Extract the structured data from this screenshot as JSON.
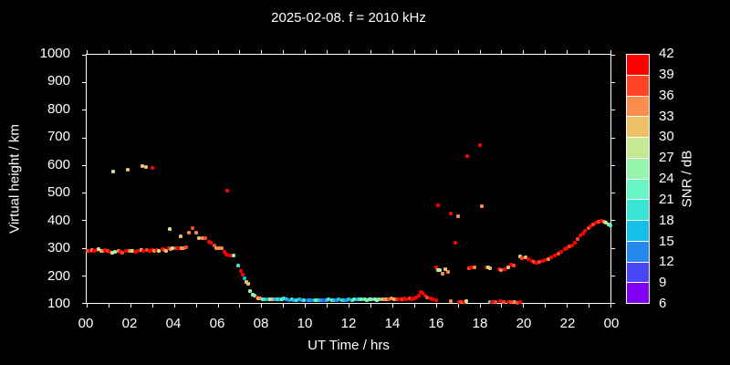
{
  "title": "2025-02-08. f = 2010 kHz",
  "chart_data": {
    "type": "scatter",
    "title": "2025-02-08. f = 2010 kHz",
    "xlabel": "UT Time / hrs",
    "ylabel": "Virtual height / km",
    "xlim": [
      0,
      24
    ],
    "ylim": [
      100,
      1000
    ],
    "x_tick_step": 1,
    "x_tick_labels": [
      [
        0,
        "00"
      ],
      [
        2,
        "02"
      ],
      [
        4,
        "04"
      ],
      [
        6,
        "06"
      ],
      [
        8,
        "08"
      ],
      [
        10,
        "10"
      ],
      [
        12,
        "12"
      ],
      [
        14,
        "14"
      ],
      [
        16,
        "16"
      ],
      [
        18,
        "18"
      ],
      [
        20,
        "20"
      ],
      [
        22,
        "22"
      ],
      [
        24,
        "00"
      ]
    ],
    "y_ticks": [
      100,
      200,
      300,
      400,
      500,
      600,
      700,
      800,
      900,
      1000
    ],
    "grid": false,
    "point_fields": [
      "ut_hours",
      "virtual_height_km",
      "snr_db"
    ],
    "points": [
      [
        0.05,
        290,
        37
      ],
      [
        0.15,
        288,
        40
      ],
      [
        0.25,
        293,
        34
      ],
      [
        0.35,
        290,
        40
      ],
      [
        0.45,
        292,
        40
      ],
      [
        0.55,
        295,
        28
      ],
      [
        0.65,
        290,
        31
      ],
      [
        0.75,
        288,
        34
      ],
      [
        0.85,
        292,
        40
      ],
      [
        0.95,
        290,
        37
      ],
      [
        1.05,
        285,
        40
      ],
      [
        1.15,
        282,
        28
      ],
      [
        1.3,
        285,
        25
      ],
      [
        1.45,
        288,
        34
      ],
      [
        1.55,
        285,
        40
      ],
      [
        1.65,
        283,
        37
      ],
      [
        1.8,
        287,
        40
      ],
      [
        1.95,
        290,
        34
      ],
      [
        2.1,
        288,
        28
      ],
      [
        2.2,
        285,
        40
      ],
      [
        2.35,
        290,
        40
      ],
      [
        2.5,
        292,
        31
      ],
      [
        2.6,
        290,
        40
      ],
      [
        2.75,
        293,
        37
      ],
      [
        2.9,
        290,
        40
      ],
      [
        3.0,
        292,
        40
      ],
      [
        3.1,
        290,
        34
      ],
      [
        3.2,
        293,
        40
      ],
      [
        3.3,
        290,
        28
      ],
      [
        3.45,
        295,
        40
      ],
      [
        3.55,
        292,
        37
      ],
      [
        3.65,
        290,
        31
      ],
      [
        3.75,
        297,
        40
      ],
      [
        3.85,
        295,
        34
      ],
      [
        3.95,
        298,
        28
      ],
      [
        4.1,
        300,
        37
      ],
      [
        4.2,
        298,
        40
      ],
      [
        4.35,
        300,
        31
      ],
      [
        4.45,
        298,
        34
      ],
      [
        4.55,
        303,
        37
      ],
      [
        1.2,
        575,
        28
      ],
      [
        1.9,
        583,
        31
      ],
      [
        2.55,
        595,
        31
      ],
      [
        2.7,
        592,
        31
      ],
      [
        3.0,
        590,
        40
      ],
      [
        3.8,
        367,
        28
      ],
      [
        4.3,
        340,
        31
      ],
      [
        4.7,
        355,
        34
      ],
      [
        4.85,
        372,
        37
      ],
      [
        5.0,
        356,
        34
      ],
      [
        5.15,
        335,
        31
      ],
      [
        5.3,
        334,
        34
      ],
      [
        5.45,
        334,
        37
      ],
      [
        5.6,
        323,
        40
      ],
      [
        5.7,
        318,
        40
      ],
      [
        5.85,
        309,
        37
      ],
      [
        5.95,
        298,
        34
      ],
      [
        6.05,
        298,
        34
      ],
      [
        6.2,
        297,
        34
      ],
      [
        6.3,
        285,
        40
      ],
      [
        6.4,
        277,
        40
      ],
      [
        6.55,
        271,
        40
      ],
      [
        6.75,
        272,
        25
      ],
      [
        6.95,
        235,
        19
      ],
      [
        7.05,
        215,
        40
      ],
      [
        7.15,
        203,
        40
      ],
      [
        7.25,
        188,
        16
      ],
      [
        7.3,
        176,
        31
      ],
      [
        7.4,
        170,
        31
      ],
      [
        7.5,
        142,
        25
      ],
      [
        7.6,
        130,
        28
      ],
      [
        6.45,
        507,
        40
      ],
      [
        7.7,
        126,
        22
      ],
      [
        7.8,
        120,
        40
      ],
      [
        7.88,
        117,
        31
      ],
      [
        7.95,
        115,
        34
      ],
      [
        8.05,
        114,
        22
      ],
      [
        8.15,
        112,
        19
      ],
      [
        8.3,
        113,
        16
      ],
      [
        8.4,
        112,
        25
      ],
      [
        8.5,
        114,
        31
      ],
      [
        8.6,
        112,
        16
      ],
      [
        8.75,
        113,
        19
      ],
      [
        8.85,
        112,
        16
      ],
      [
        8.95,
        114,
        22
      ],
      [
        9.05,
        115,
        19
      ],
      [
        9.15,
        112,
        16
      ],
      [
        9.3,
        110,
        13
      ],
      [
        9.4,
        112,
        19
      ],
      [
        9.5,
        111,
        16
      ],
      [
        9.6,
        110,
        19
      ],
      [
        9.75,
        112,
        16
      ],
      [
        9.85,
        110,
        13
      ],
      [
        9.95,
        111,
        19
      ],
      [
        10.1,
        110,
        10
      ],
      [
        10.2,
        111,
        16
      ],
      [
        10.3,
        110,
        13
      ],
      [
        10.45,
        110,
        19
      ],
      [
        10.55,
        109,
        22
      ],
      [
        10.65,
        110,
        16
      ],
      [
        10.8,
        111,
        13
      ],
      [
        10.9,
        110,
        10
      ],
      [
        11.0,
        110,
        16
      ],
      [
        11.1,
        112,
        19
      ],
      [
        11.25,
        110,
        22
      ],
      [
        11.35,
        111,
        16
      ],
      [
        11.45,
        110,
        13
      ],
      [
        11.55,
        112,
        16
      ],
      [
        11.7,
        110,
        19
      ],
      [
        11.8,
        111,
        16
      ],
      [
        11.9,
        110,
        13
      ],
      [
        12.0,
        112,
        16
      ],
      [
        12.15,
        110,
        19
      ],
      [
        12.25,
        112,
        22
      ],
      [
        12.4,
        113,
        16
      ],
      [
        12.5,
        112,
        19
      ],
      [
        12.6,
        114,
        22
      ],
      [
        12.75,
        112,
        25
      ],
      [
        12.85,
        110,
        22
      ],
      [
        12.95,
        112,
        25
      ],
      [
        13.05,
        113,
        22
      ],
      [
        13.2,
        112,
        28
      ],
      [
        13.3,
        110,
        25
      ],
      [
        13.4,
        113,
        22
      ],
      [
        13.55,
        112,
        31
      ],
      [
        13.65,
        114,
        34
      ],
      [
        13.75,
        112,
        31
      ],
      [
        13.85,
        113,
        37
      ],
      [
        13.95,
        115,
        34
      ],
      [
        14.1,
        113,
        31
      ],
      [
        14.2,
        112,
        37
      ],
      [
        14.3,
        114,
        40
      ],
      [
        14.45,
        113,
        37
      ],
      [
        14.55,
        115,
        40
      ],
      [
        14.65,
        113,
        40
      ],
      [
        14.8,
        115,
        37
      ],
      [
        14.9,
        113,
        40
      ],
      [
        15.0,
        118,
        40
      ],
      [
        15.1,
        120,
        40
      ],
      [
        15.2,
        128,
        40
      ],
      [
        15.3,
        140,
        40
      ],
      [
        15.4,
        135,
        40
      ],
      [
        15.5,
        125,
        40
      ],
      [
        15.6,
        120,
        37
      ],
      [
        15.75,
        115,
        40
      ],
      [
        15.85,
        112,
        40
      ],
      [
        16.0,
        110,
        40
      ],
      [
        16.7,
        107,
        34
      ],
      [
        17.05,
        103,
        40
      ],
      [
        17.15,
        103,
        37
      ],
      [
        17.3,
        104,
        40
      ],
      [
        17.4,
        105,
        28
      ],
      [
        18.5,
        103,
        19
      ],
      [
        18.55,
        103,
        40
      ],
      [
        18.75,
        104,
        37
      ],
      [
        18.95,
        105,
        40
      ],
      [
        19.1,
        104,
        37
      ],
      [
        19.3,
        103,
        40
      ],
      [
        19.45,
        104,
        37
      ],
      [
        19.6,
        103,
        34
      ],
      [
        19.75,
        101,
        37
      ],
      [
        19.85,
        102,
        40
      ],
      [
        16.0,
        228,
        40
      ],
      [
        16.1,
        220,
        25
      ],
      [
        16.2,
        218,
        28
      ],
      [
        16.3,
        205,
        34
      ],
      [
        16.45,
        222,
        31
      ],
      [
        16.55,
        213,
        34
      ],
      [
        17.5,
        225,
        37
      ],
      [
        17.6,
        230,
        40
      ],
      [
        17.75,
        228,
        34
      ],
      [
        18.3,
        228,
        40
      ],
      [
        18.4,
        228,
        25
      ],
      [
        18.5,
        225,
        31
      ],
      [
        18.9,
        222,
        40
      ],
      [
        19.0,
        220,
        34
      ],
      [
        19.15,
        222,
        40
      ],
      [
        19.3,
        228,
        31
      ],
      [
        19.45,
        238,
        40
      ],
      [
        19.55,
        235,
        37
      ],
      [
        16.1,
        455,
        40
      ],
      [
        16.7,
        425,
        40
      ],
      [
        16.9,
        317,
        40
      ],
      [
        17.0,
        415,
        34
      ],
      [
        17.45,
        632,
        40
      ],
      [
        18.0,
        672,
        40
      ],
      [
        18.1,
        451,
        34
      ],
      [
        19.85,
        268,
        31
      ],
      [
        19.95,
        262,
        37
      ],
      [
        20.1,
        265,
        31
      ],
      [
        20.25,
        258,
        40
      ],
      [
        20.4,
        252,
        40
      ],
      [
        20.5,
        248,
        37
      ],
      [
        20.6,
        246,
        40
      ],
      [
        20.75,
        250,
        37
      ],
      [
        20.9,
        252,
        40
      ],
      [
        21.0,
        255,
        40
      ],
      [
        21.15,
        258,
        34
      ],
      [
        21.3,
        265,
        40
      ],
      [
        21.45,
        272,
        40
      ],
      [
        21.6,
        278,
        37
      ],
      [
        21.75,
        285,
        40
      ],
      [
        21.9,
        295,
        40
      ],
      [
        22.0,
        300,
        40
      ],
      [
        22.1,
        305,
        37
      ],
      [
        22.25,
        310,
        40
      ],
      [
        22.35,
        318,
        40
      ],
      [
        22.5,
        332,
        37
      ],
      [
        22.6,
        345,
        40
      ],
      [
        22.75,
        352,
        40
      ],
      [
        22.85,
        362,
        40
      ],
      [
        23.0,
        370,
        37
      ],
      [
        23.1,
        378,
        40
      ],
      [
        23.2,
        385,
        37
      ],
      [
        23.35,
        390,
        40
      ],
      [
        23.45,
        393,
        37
      ],
      [
        23.6,
        397,
        40
      ],
      [
        23.7,
        395,
        34
      ],
      [
        23.8,
        390,
        28
      ],
      [
        23.9,
        386,
        25
      ],
      [
        23.98,
        382,
        22
      ]
    ]
  },
  "colorbar": {
    "label": "SNR / dB",
    "min": 6,
    "max": 42,
    "step": 3,
    "tick_labels": [
      42,
      39,
      36,
      33,
      30,
      27,
      24,
      21,
      18,
      15,
      12,
      9,
      6
    ],
    "colors_top_to_bottom": [
      "#ff0000",
      "#ff4526",
      "#fb8c4b",
      "#eec169",
      "#c6e793",
      "#97f6ab",
      "#67f6c3",
      "#3ae4d4",
      "#14bfe9",
      "#2589f0",
      "#4b46f5",
      "#7f00f2"
    ]
  },
  "colors": {
    "background": "#000000",
    "foreground": "#ffffff"
  }
}
